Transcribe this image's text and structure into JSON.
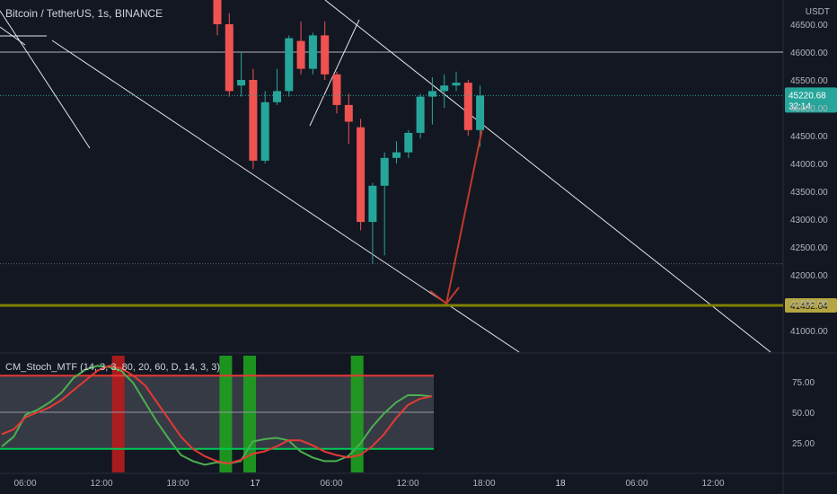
{
  "header": {
    "symbol_title": "Bitcoin / TetherUS, 1s, BINANCE",
    "currency": "USDT"
  },
  "indicator": {
    "title": "CM_Stoch_MTF (14, 3, 3, 80, 20, 60, D, 14, 3, 3)"
  },
  "colors": {
    "background": "#131722",
    "up": "#26a69a",
    "down": "#ef5350",
    "price_line": "#26a69a",
    "level_line": "#808000",
    "stoch_k": "#4caf50",
    "stoch_d": "#e53935",
    "arrow": "#c0392b",
    "trendline": "#e6e6e6"
  },
  "chart_data": [
    {
      "type": "candlestick",
      "title": "Bitcoin / TetherUS, 1s, BINANCE",
      "y_unit": "USDT",
      "yticks": [
        "46500.00",
        "46000.00",
        "45500.00",
        "45000.00",
        "44500.00",
        "44000.00",
        "43500.00",
        "43000.00",
        "42500.00",
        "42000.00",
        "41500.00",
        "41000.00"
      ],
      "ylim": [
        40700,
        46800
      ],
      "xticks": [
        "06:00",
        "12:00",
        "18:00",
        "17",
        "06:00",
        "12:00",
        "18:00",
        "18",
        "06:00",
        "12:00"
      ],
      "candles": [
        {
          "o": 47000,
          "h": 47300,
          "l": 46300,
          "c": 46500
        },
        {
          "o": 46500,
          "h": 46700,
          "l": 45200,
          "c": 45300
        },
        {
          "o": 45400,
          "h": 46000,
          "l": 45200,
          "c": 45500
        },
        {
          "o": 45500,
          "h": 45700,
          "l": 43900,
          "c": 44050
        },
        {
          "o": 44050,
          "h": 45300,
          "l": 44000,
          "c": 45100
        },
        {
          "o": 45100,
          "h": 45700,
          "l": 45050,
          "c": 45300
        },
        {
          "o": 45300,
          "h": 46300,
          "l": 45200,
          "c": 46250
        },
        {
          "o": 46200,
          "h": 46550,
          "l": 45600,
          "c": 45700
        },
        {
          "o": 45700,
          "h": 46350,
          "l": 45600,
          "c": 46300
        },
        {
          "o": 46300,
          "h": 46550,
          "l": 45500,
          "c": 45600
        },
        {
          "o": 45600,
          "h": 45650,
          "l": 44900,
          "c": 45050
        },
        {
          "o": 45050,
          "h": 45250,
          "l": 44350,
          "c": 44750
        },
        {
          "o": 44650,
          "h": 44800,
          "l": 42800,
          "c": 42950
        },
        {
          "o": 42950,
          "h": 43650,
          "l": 42200,
          "c": 43600
        },
        {
          "o": 43600,
          "h": 44200,
          "l": 42350,
          "c": 44100
        },
        {
          "o": 44100,
          "h": 44400,
          "l": 44000,
          "c": 44200
        },
        {
          "o": 44200,
          "h": 44600,
          "l": 44100,
          "c": 44550
        },
        {
          "o": 44550,
          "h": 45250,
          "l": 44450,
          "c": 45200
        },
        {
          "o": 45200,
          "h": 45550,
          "l": 44700,
          "c": 45300
        },
        {
          "o": 45300,
          "h": 45600,
          "l": 45000,
          "c": 45400
        },
        {
          "o": 45400,
          "h": 45650,
          "l": 45300,
          "c": 45450
        },
        {
          "o": 45450,
          "h": 45500,
          "l": 44500,
          "c": 44600
        },
        {
          "o": 44600,
          "h": 45400,
          "l": 44300,
          "c": 45220.68
        }
      ],
      "last_price": "45220.68",
      "countdown": "32:14",
      "level": "41452.04",
      "level_value": 41452.04
    },
    {
      "type": "line",
      "title": "CM_Stoch_MTF (14, 3, 3, 80, 20, 60, D, 14, 3, 3)",
      "yticks": [
        "75.00",
        "50.00",
        "25.00"
      ],
      "ylim": [
        3,
        90
      ],
      "upper_band": 80,
      "lower_band": 20,
      "mid_band": 50,
      "series": [
        {
          "values": [
            22,
            30,
            48,
            52,
            58,
            66,
            78,
            85,
            88,
            87,
            84,
            74,
            58,
            42,
            28,
            15,
            10,
            7,
            9,
            8,
            10,
            26,
            28,
            29,
            27,
            18,
            13,
            10,
            10,
            14,
            24,
            38,
            49,
            58,
            64,
            64,
            63
          ]
        },
        {
          "values": [
            32,
            36,
            46,
            50,
            54,
            60,
            68,
            76,
            84,
            88,
            86,
            80,
            72,
            58,
            44,
            30,
            20,
            14,
            10,
            8,
            11,
            16,
            18,
            22,
            27,
            27,
            23,
            18,
            15,
            13,
            15,
            22,
            32,
            45,
            56,
            61,
            63
          ]
        }
      ],
      "signals": [
        {
          "kind": "overbought",
          "index": 9
        },
        {
          "kind": "oversold",
          "index": 18
        },
        {
          "kind": "oversold",
          "index": 20
        },
        {
          "kind": "oversold",
          "index": 29
        }
      ]
    }
  ]
}
